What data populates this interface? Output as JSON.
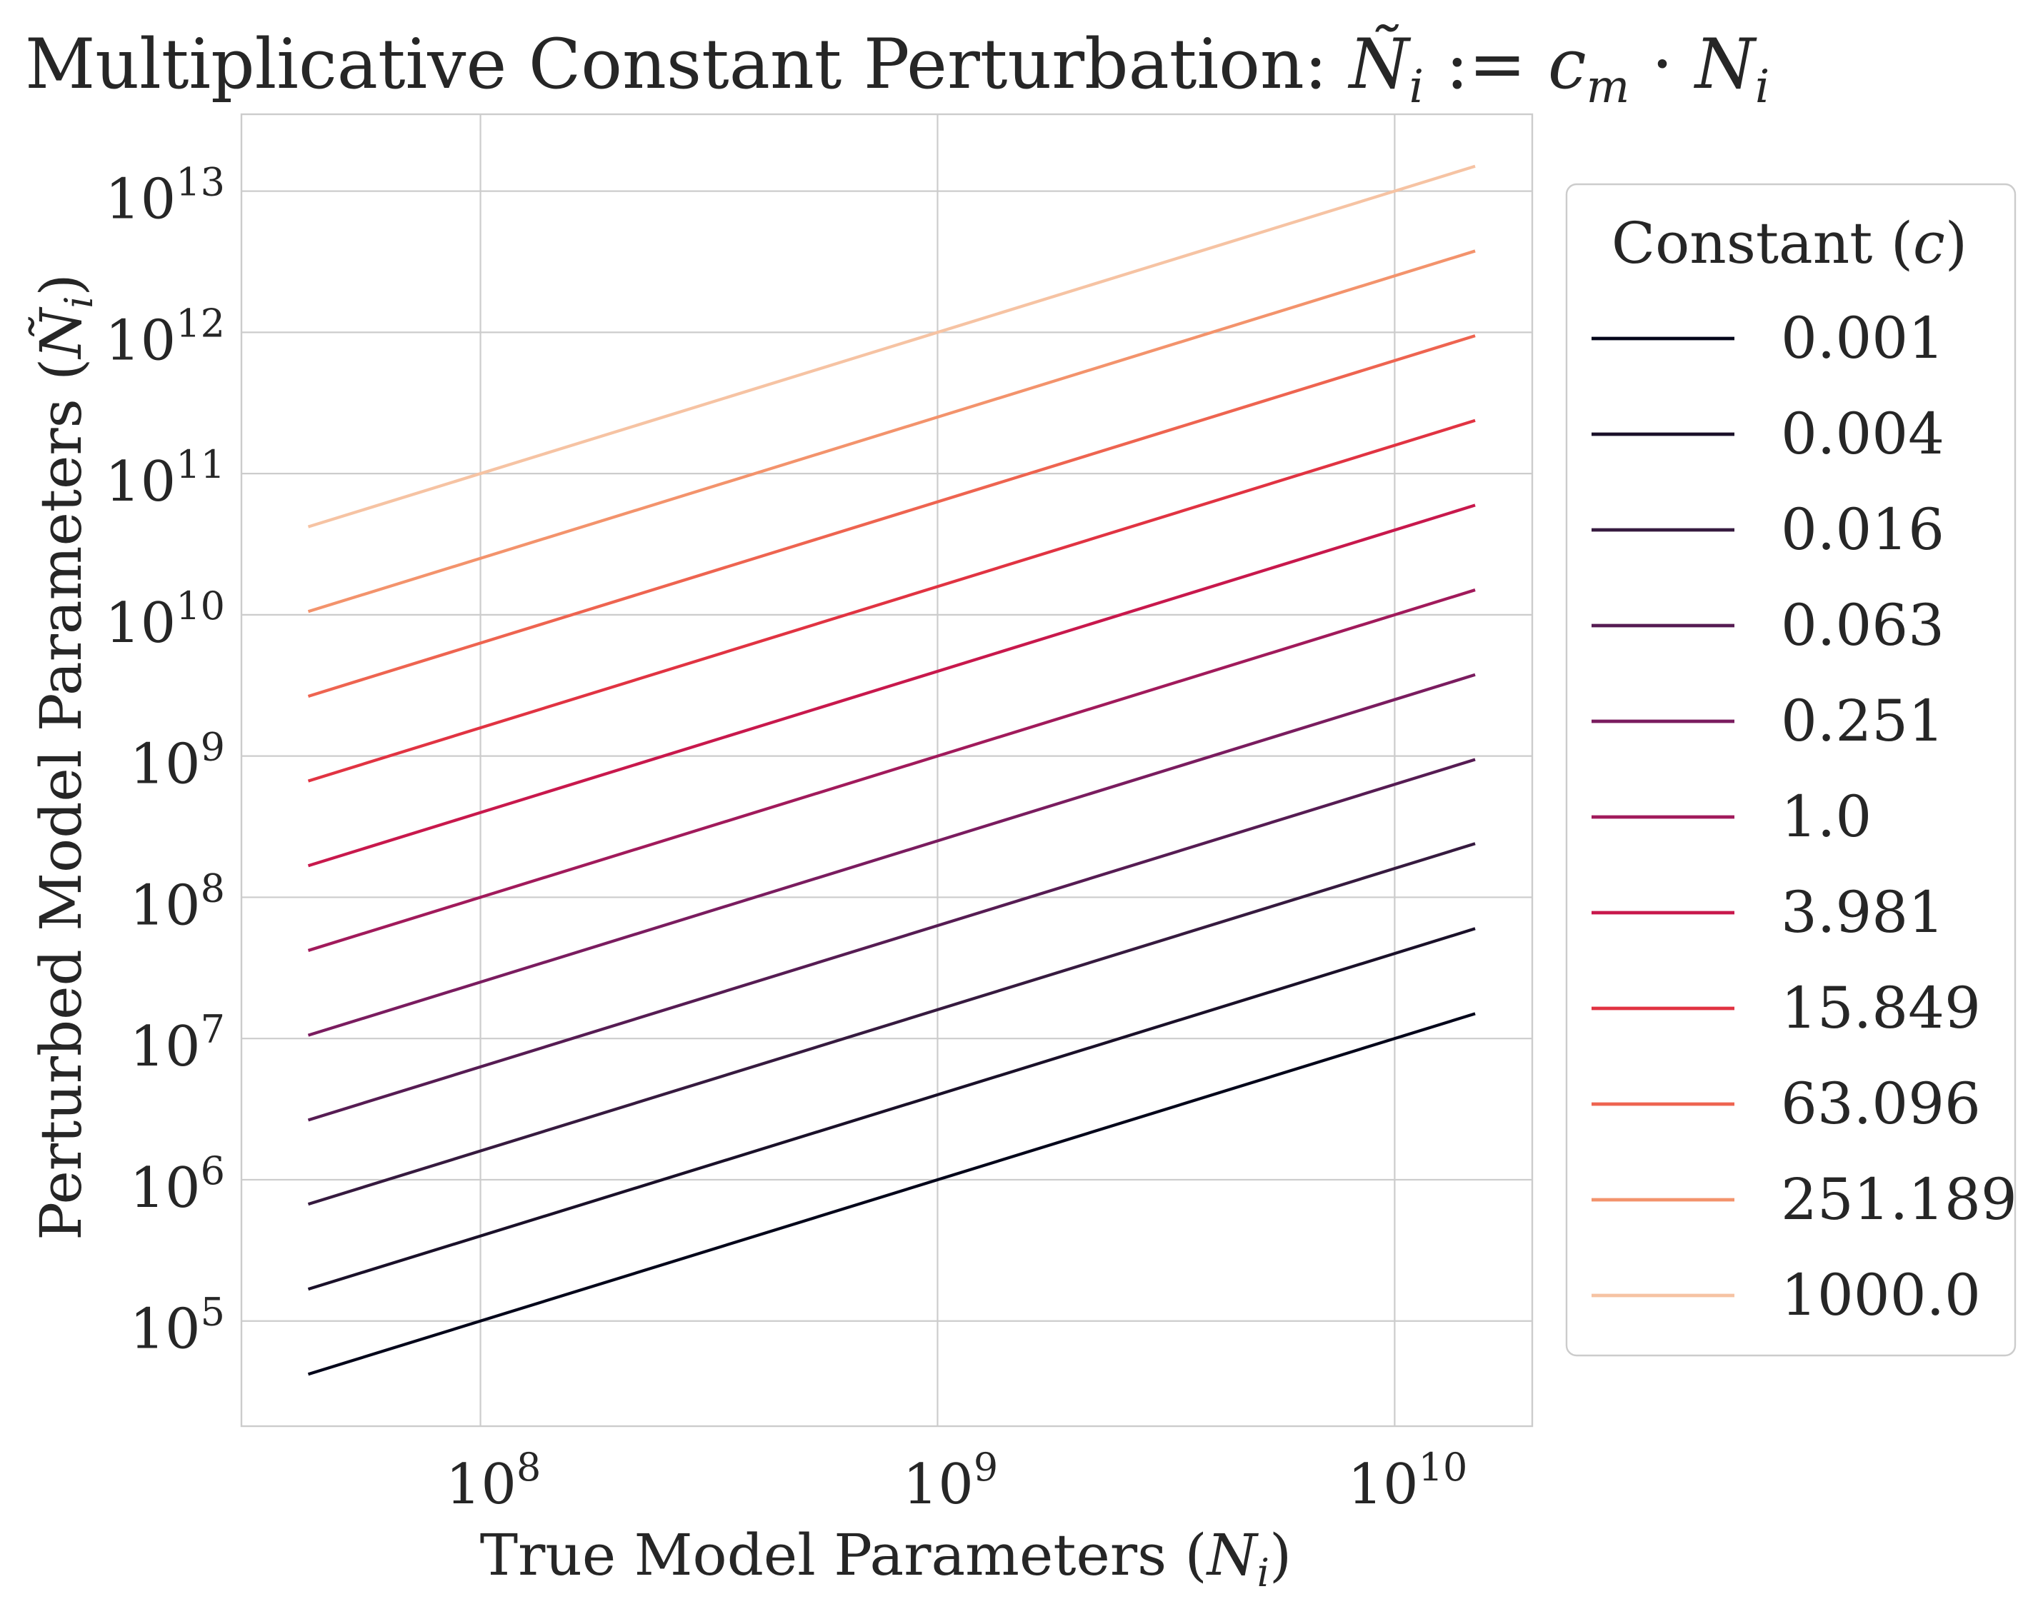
{
  "chart_data": {
    "type": "line",
    "title": "Multiplicative Constant Perturbation: Ñ_i := c_m · N_i",
    "xlabel": "True Model Parameters (N_i)",
    "ylabel": "Perturbed Model Parameters (Ñ_i)",
    "x_scale": "log",
    "y_scale": "log",
    "xlim": [
      30000000,
      20000000000
    ],
    "ylim": [
      18000,
      35000000000000
    ],
    "x_ticks": [
      100000000,
      1000000000,
      10000000000
    ],
    "y_ticks": [
      100000,
      1000000,
      10000000,
      100000000,
      1000000000,
      10000000000,
      100000000000,
      1000000000000,
      10000000000000
    ],
    "x_tick_labels": [
      {
        "base": "10",
        "exp": "8"
      },
      {
        "base": "10",
        "exp": "9"
      },
      {
        "base": "10",
        "exp": "10"
      }
    ],
    "y_tick_labels": [
      {
        "base": "10",
        "exp": "5"
      },
      {
        "base": "10",
        "exp": "6"
      },
      {
        "base": "10",
        "exp": "7"
      },
      {
        "base": "10",
        "exp": "8"
      },
      {
        "base": "10",
        "exp": "9"
      },
      {
        "base": "10",
        "exp": "10"
      },
      {
        "base": "10",
        "exp": "11"
      },
      {
        "base": "10",
        "exp": "12"
      },
      {
        "base": "10",
        "exp": "13"
      }
    ],
    "x": [
      42000000,
      15000000000
    ],
    "grid": true,
    "legend": {
      "title": "Constant (c)",
      "placement": "outside-right"
    },
    "series": [
      {
        "name": "0.001",
        "c": 0.001,
        "color": "#03051a",
        "values": [
          42000,
          15000000
        ]
      },
      {
        "name": "0.004",
        "c": 0.004,
        "color": "#1a1029",
        "values": [
          168000,
          60000000
        ]
      },
      {
        "name": "0.016",
        "c": 0.016,
        "color": "#361a3f",
        "values": [
          672000,
          240000000
        ]
      },
      {
        "name": "0.063",
        "c": 0.063,
        "color": "#561c53",
        "values": [
          2646000,
          945000000
        ]
      },
      {
        "name": "0.251",
        "c": 0.251,
        "color": "#7a1c5f",
        "values": [
          10542000,
          3765000000
        ]
      },
      {
        "name": "1.0",
        "c": 1.0,
        "color": "#a11a5b",
        "values": [
          42000000,
          15000000000
        ]
      },
      {
        "name": "3.981",
        "c": 3.981,
        "color": "#c8184c",
        "values": [
          167202000,
          59715000000
        ]
      },
      {
        "name": "15.849",
        "c": 15.849,
        "color": "#e13342",
        "values": [
          665658000,
          237735000000
        ]
      },
      {
        "name": "63.096",
        "c": 63.096,
        "color": "#ee6450",
        "values": [
          2650032000,
          946440000000
        ]
      },
      {
        "name": "251.189",
        "c": 251.189,
        "color": "#f3936c",
        "values": [
          10549938000,
          3767835000000
        ]
      },
      {
        "name": "1000.0",
        "c": 1000.0,
        "color": "#f6c3a3",
        "values": [
          42000000000,
          15000000000000
        ]
      }
    ]
  }
}
